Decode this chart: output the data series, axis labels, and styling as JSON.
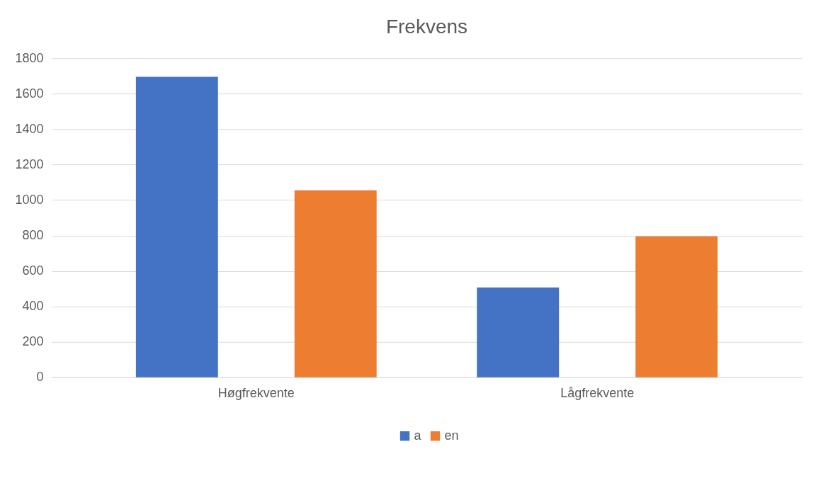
{
  "chart_data": {
    "type": "bar",
    "title": "Frekvens",
    "categories": [
      "Høgfrekvente",
      "Lågfrekvente"
    ],
    "series": [
      {
        "name": "a",
        "color": "#4472c4",
        "values": [
          1695,
          507
        ]
      },
      {
        "name": "en",
        "color": "#ed7d31",
        "values": [
          1055,
          795
        ]
      }
    ],
    "ylim": [
      0,
      1800
    ],
    "yticks": [
      0,
      200,
      400,
      600,
      800,
      1000,
      1200,
      1400,
      1600,
      1800
    ],
    "grid": "y",
    "legend": "bottom"
  }
}
